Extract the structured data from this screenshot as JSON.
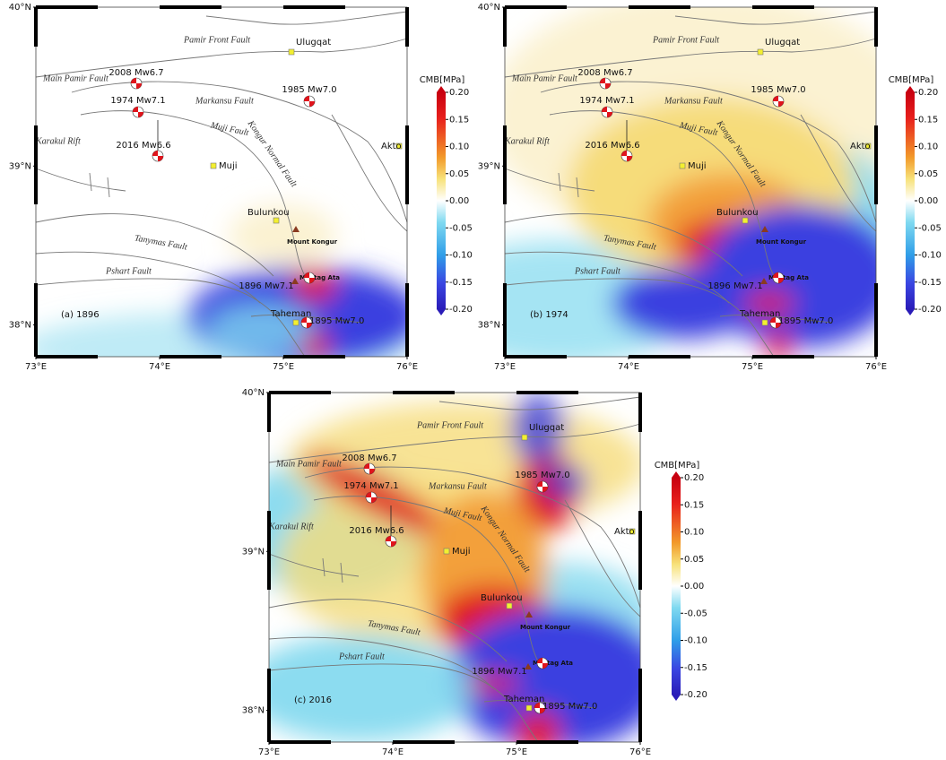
{
  "figure": {
    "xlim": [
      73,
      76
    ],
    "ylim": [
      37.8,
      40
    ],
    "lon_ticks": [
      {
        "value": 73,
        "label": "73°E"
      },
      {
        "value": 74,
        "label": "74°E"
      },
      {
        "value": 75,
        "label": "75°E"
      },
      {
        "value": 76,
        "label": "76°E"
      }
    ],
    "lat_ticks": [
      {
        "value": 38,
        "label": "38°N"
      },
      {
        "value": 39,
        "label": "39°N"
      },
      {
        "value": 40,
        "label": "40°N"
      }
    ],
    "colorbar": {
      "title": "CMB[MPa]",
      "ticks": [
        {
          "value": 0.2,
          "label": "0.20"
        },
        {
          "value": 0.15,
          "label": "0.15"
        },
        {
          "value": 0.1,
          "label": "0.10"
        },
        {
          "value": 0.05,
          "label": "0.05"
        },
        {
          "value": 0,
          "label": "0.00"
        },
        {
          "value": -0.05,
          "label": "-0.05"
        },
        {
          "value": -0.1,
          "label": "-0.10"
        },
        {
          "value": -0.15,
          "label": "-0.15"
        },
        {
          "value": -0.2,
          "label": "-0.20"
        }
      ]
    },
    "faults": [
      "Pamir Front Fault",
      "Main Pamir Fault",
      "Markansu Fault",
      "Muji Fault",
      "Karakul Rift",
      "Kongur Normal Fault",
      "Tanymas Fault",
      "Pshart Fault"
    ],
    "places": [
      "Ulugqat",
      "Akto",
      "Muji",
      "Bulunkou",
      "Mount Kongur",
      "Muztag Ata",
      "Taheman"
    ],
    "events": [
      "2008 Mw6.7",
      "1985 Mw7.0",
      "1974 Mw7.1",
      "2016 Mw6.6",
      "1896 Mw7.1",
      "1895 Mw7.0"
    ],
    "panels": [
      {
        "label": "(a) 1896"
      },
      {
        "label": "(b) 1974"
      },
      {
        "label": "(c) 2016"
      }
    ]
  }
}
